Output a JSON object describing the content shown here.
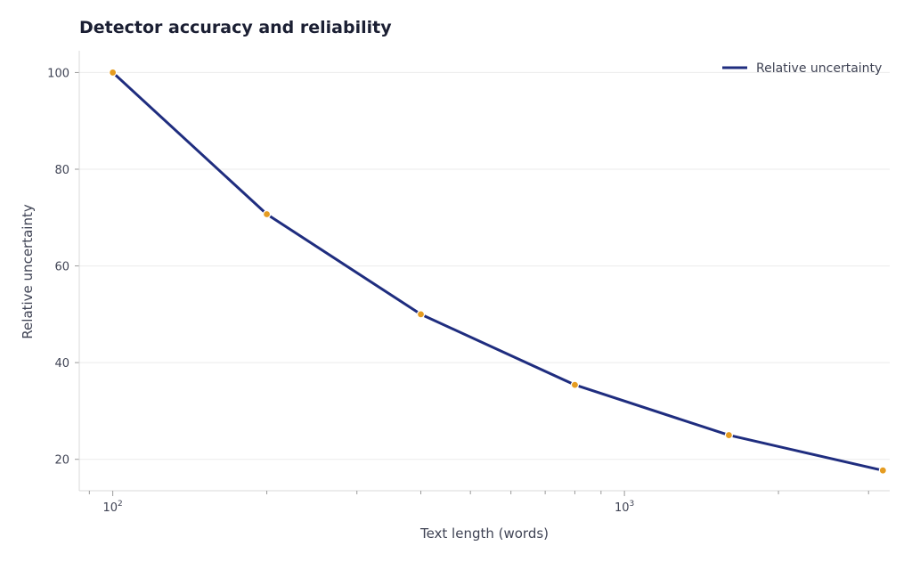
{
  "chart_data": {
    "type": "line",
    "title": "Detector accuracy and reliability",
    "xlabel": "Text length (words)",
    "ylabel": "Relative uncertainty",
    "x_scale": "log",
    "xlim": [
      86,
      3300
    ],
    "ylim": [
      13.5,
      104.5
    ],
    "x_major_ticks": [
      100,
      1000
    ],
    "x_tick_labels": [
      {
        "base": "10",
        "exp": "2"
      },
      {
        "base": "10",
        "exp": "3"
      }
    ],
    "x_minor_ticks": [
      90,
      200,
      300,
      400,
      500,
      600,
      700,
      800,
      900,
      2000,
      3000
    ],
    "y_ticks": [
      20,
      40,
      60,
      80,
      100
    ],
    "grid": true,
    "legend_position": "top-right",
    "series": [
      {
        "name": "Relative uncertainty",
        "x": [
          100,
          200,
          400,
          800,
          1600,
          3200
        ],
        "y": [
          100,
          70.7,
          50,
          35.4,
          25,
          17.7
        ],
        "line_color": "#1f2d7f",
        "marker_color": "#e59c21"
      }
    ]
  }
}
